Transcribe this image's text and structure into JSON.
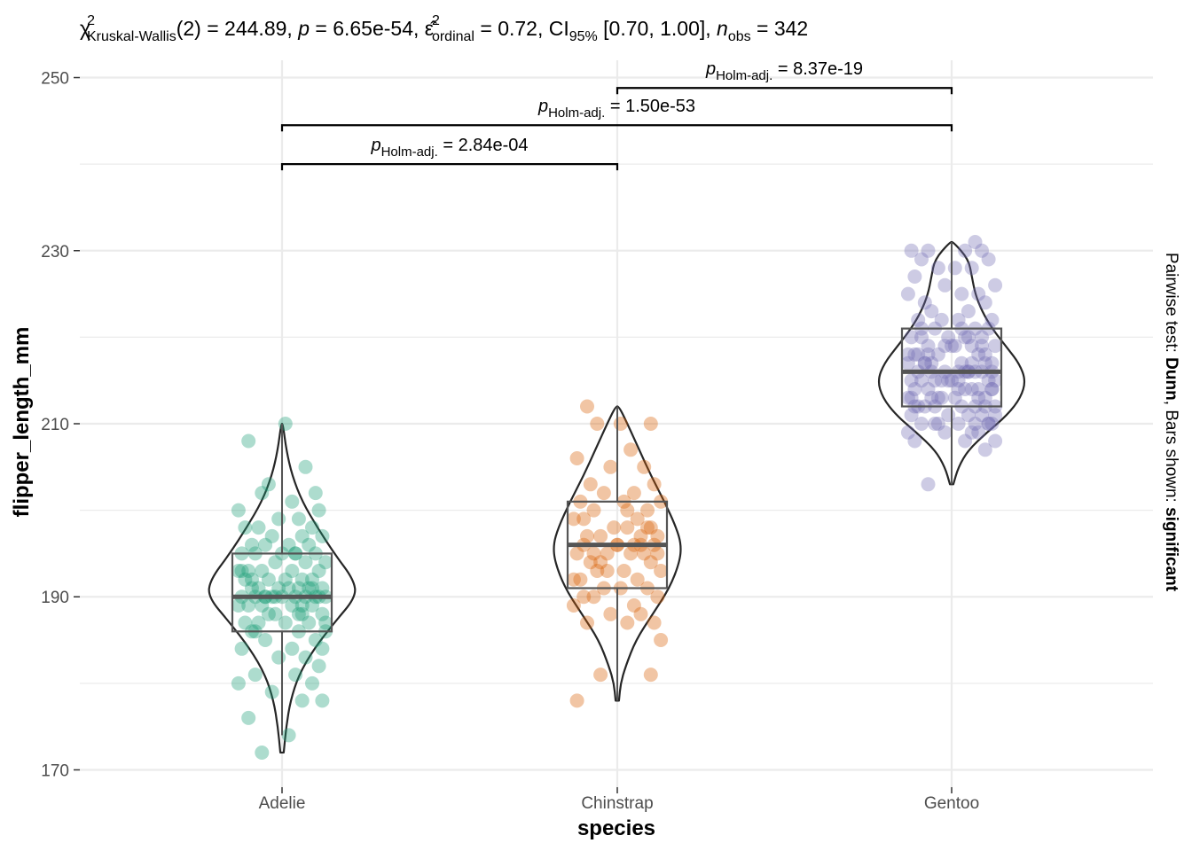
{
  "chart_data": {
    "type": "violin-box-scatter",
    "xlabel": "species",
    "ylabel": "flipper_length_mm",
    "categories": [
      "Adelie",
      "Chinstrap",
      "Gentoo"
    ],
    "colors": [
      "#1b9e77",
      "#d95f02",
      "#7570b3"
    ],
    "ylim": [
      168,
      252
    ],
    "yticks": [
      170,
      190,
      210,
      230,
      250
    ],
    "grid": true,
    "subtitle": {
      "chi": "χ",
      "chi_sup": "2",
      "chi_sub": "Kruskal-Wallis",
      "df": "(2) = 244.89, ",
      "p_sym": "p",
      "p_val": " = 6.65e-54, ",
      "eps": "ε̂",
      "eps_sup": "2",
      "eps_sub": "ordinal",
      "eps_val": " = 0.72, CI",
      "ci_sub": "95%",
      "ci_val": " [0.70, 1.00], ",
      "n_sym": "n",
      "n_sub": "obs",
      "n_val": " = 342"
    },
    "caption": {
      "prefix": "Pairwise test: ",
      "test": "Dunn",
      "mid": ", Bars shown: ",
      "shown": "significant"
    },
    "boxes": [
      {
        "name": "Adelie",
        "q1": 186,
        "median": 190,
        "q3": 195,
        "min": 174,
        "max": 210
      },
      {
        "name": "Chinstrap",
        "q1": 191,
        "median": 196,
        "q3": 201,
        "min": 178,
        "max": 212
      },
      {
        "name": "Gentoo",
        "q1": 212,
        "median": 216,
        "q3": 221,
        "min": 203,
        "max": 231
      }
    ],
    "violins": [
      {
        "name": "Adelie",
        "profile": [
          [
            172,
            0.02
          ],
          [
            175,
            0.05
          ],
          [
            178,
            0.1
          ],
          [
            181,
            0.2
          ],
          [
            184,
            0.38
          ],
          [
            187,
            0.62
          ],
          [
            190,
            0.88
          ],
          [
            192,
            0.85
          ],
          [
            195,
            0.62
          ],
          [
            198,
            0.42
          ],
          [
            201,
            0.24
          ],
          [
            204,
            0.12
          ],
          [
            207,
            0.05
          ],
          [
            210,
            0.01
          ]
        ]
      },
      {
        "name": "Chinstrap",
        "profile": [
          [
            178,
            0.02
          ],
          [
            180,
            0.04
          ],
          [
            182,
            0.1
          ],
          [
            185,
            0.22
          ],
          [
            188,
            0.42
          ],
          [
            191,
            0.62
          ],
          [
            194,
            0.74
          ],
          [
            196,
            0.76
          ],
          [
            198,
            0.7
          ],
          [
            201,
            0.56
          ],
          [
            204,
            0.4
          ],
          [
            207,
            0.26
          ],
          [
            210,
            0.12
          ],
          [
            212,
            0.02
          ]
        ]
      },
      {
        "name": "Gentoo",
        "profile": [
          [
            203,
            0.02
          ],
          [
            205,
            0.08
          ],
          [
            207,
            0.2
          ],
          [
            209,
            0.42
          ],
          [
            211,
            0.66
          ],
          [
            213,
            0.82
          ],
          [
            215,
            0.88
          ],
          [
            217,
            0.8
          ],
          [
            219,
            0.64
          ],
          [
            221,
            0.48
          ],
          [
            223,
            0.36
          ],
          [
            225,
            0.28
          ],
          [
            227,
            0.24
          ],
          [
            229,
            0.2
          ],
          [
            231,
            0.02
          ]
        ]
      }
    ],
    "comparisons": [
      {
        "group1": "Adelie",
        "group2": "Chinstrap",
        "y": 240,
        "p_sym": "p",
        "p_sub": "Holm-adj.",
        "p_val": " = 2.84e-04"
      },
      {
        "group1": "Adelie",
        "group2": "Gentoo",
        "y": 244.5,
        "p_sym": "p",
        "p_sub": "Holm-adj.",
        "p_val": " = 1.50e-53"
      },
      {
        "group1": "Chinstrap",
        "group2": "Gentoo",
        "y": 248.8,
        "p_sym": "p",
        "p_sub": "Holm-adj.",
        "p_val": " = 8.37e-19"
      }
    ],
    "points": [
      {
        "name": "Adelie",
        "dx": [
          -0.06,
          0.02,
          -0.1,
          0.06,
          0.12,
          -0.03,
          0.09,
          -0.13,
          0.04,
          -0.08,
          0.11,
          -0.01,
          0.07,
          -0.12,
          0.03,
          -0.05,
          0.1,
          -0.09,
          0.05,
          0.13,
          -0.07,
          0.01,
          -0.11,
          0.08,
          -0.04,
          0.12,
          -0.02,
          0.06,
          -0.13,
          0.09,
          -0.06,
          0.03,
          -0.1,
          0.11,
          0.0,
          -0.08,
          0.07,
          -0.03,
          0.13,
          -0.12,
          0.04,
          0.1,
          -0.05,
          0.02,
          -0.09,
          0.08,
          -0.01,
          0.12,
          -0.07,
          0.05,
          -0.11,
          0.09,
          -0.04,
          0.06,
          0.01,
          -0.13,
          0.11,
          -0.06,
          0.03,
          -0.1,
          0.07,
          -0.02,
          0.13,
          -0.08,
          0.04,
          -0.12,
          0.1,
          0.0,
          -0.05,
          0.08,
          -0.09,
          0.02,
          0.12,
          -0.03,
          0.06,
          -0.11,
          0.09,
          -0.07,
          0.05,
          -0.01,
          0.11,
          -0.13,
          0.03,
          -0.06,
          0.1,
          -0.04,
          0.07,
          -0.1,
          0.01,
          0.12,
          -0.08,
          0.05,
          -0.02,
          0.09,
          -0.12,
          0.04,
          -0.05,
          0.13,
          -0.09,
          0.06
        ],
        "y": [
          172,
          174,
          176,
          178,
          178,
          179,
          180,
          180,
          181,
          181,
          182,
          183,
          183,
          184,
          184,
          185,
          185,
          186,
          186,
          186,
          187,
          187,
          187,
          187,
          188,
          188,
          188,
          188,
          189,
          189,
          189,
          189,
          189,
          190,
          190,
          190,
          190,
          190,
          190,
          190,
          190,
          190,
          190,
          191,
          191,
          191,
          191,
          191,
          191,
          191,
          192,
          192,
          192,
          192,
          192,
          193,
          193,
          193,
          193,
          193,
          194,
          194,
          194,
          195,
          195,
          195,
          195,
          195,
          196,
          196,
          196,
          196,
          197,
          197,
          197,
          198,
          198,
          198,
          199,
          199,
          200,
          200,
          201,
          202,
          202,
          203,
          205,
          208,
          210,
          184,
          186,
          188,
          190,
          191,
          193,
          195,
          190,
          187,
          192,
          189
        ]
      },
      {
        "name": "Chinstrap",
        "dx": [
          -0.12,
          0.1,
          -0.05,
          0.13,
          -0.09,
          0.03,
          0.11,
          -0.02,
          0.07,
          -0.13,
          0.05,
          -0.07,
          0.12,
          -0.1,
          0.01,
          0.09,
          -0.04,
          0.06,
          -0.11,
          0.13,
          -0.06,
          0.02,
          0.1,
          -0.08,
          0.04,
          -0.12,
          0.08,
          -0.03,
          0.11,
          -0.1,
          0.0,
          0.07,
          -0.05,
          0.12,
          -0.09,
          0.03,
          -0.01,
          0.1,
          -0.13,
          0.06,
          -0.07,
          0.09,
          0.02,
          -0.11,
          0.13,
          -0.04,
          0.05,
          -0.08,
          0.11,
          -0.02,
          0.08,
          -0.12,
          0.04,
          -0.06,
          0.1,
          0.01,
          -0.09,
          0.12,
          -0.03,
          0.07,
          -0.1,
          0.05,
          -0.05,
          0.09,
          -0.13,
          0.03,
          0.0,
          -0.07
        ],
        "y": [
          178,
          181,
          181,
          185,
          187,
          187,
          187,
          188,
          188,
          189,
          189,
          190,
          190,
          190,
          191,
          191,
          191,
          192,
          192,
          193,
          193,
          193,
          194,
          194,
          195,
          195,
          195,
          195,
          196,
          196,
          196,
          196,
          197,
          197,
          197,
          198,
          198,
          198,
          199,
          199,
          200,
          200,
          201,
          201,
          201,
          202,
          202,
          203,
          203,
          205,
          205,
          206,
          207,
          210,
          210,
          210,
          212,
          195,
          193,
          197,
          199,
          196,
          194,
          198,
          192,
          200,
          196,
          195
        ]
      },
      {
        "name": "Gentoo",
        "dx": [
          -0.07,
          0.1,
          -0.11,
          0.04,
          0.13,
          -0.02,
          0.08,
          -0.13,
          0.06,
          -0.05,
          0.11,
          -0.09,
          0.02,
          0.12,
          -0.04,
          0.07,
          -0.12,
          0.09,
          -0.01,
          0.05,
          -0.08,
          0.13,
          -0.1,
          0.03,
          0.1,
          -0.06,
          0.01,
          -0.13,
          0.08,
          -0.03,
          0.12,
          -0.11,
          0.06,
          -0.07,
          0.04,
          0.11,
          -0.09,
          0.0,
          -0.05,
          0.13,
          -0.12,
          0.07,
          0.02,
          -0.1,
          0.09,
          -0.02,
          0.05,
          -0.08,
          0.12,
          -0.06,
          0.03,
          -0.13,
          0.1,
          -0.04,
          0.08,
          -0.11,
          0.01,
          0.06,
          -0.07,
          0.13,
          -0.01,
          0.09,
          -0.12,
          0.04,
          -0.09,
          0.11,
          -0.05,
          0.07,
          -0.03,
          0.02,
          -0.1,
          0.12,
          -0.06,
          0.05,
          -0.08,
          0.1,
          -0.13,
          0.03,
          0.08,
          -0.02,
          0.13,
          -0.11,
          0.06,
          -0.04,
          0.01,
          -0.09,
          0.11,
          -0.07,
          0.04,
          0.09,
          -0.12,
          0.07,
          -0.05,
          0.02,
          0.12,
          -0.1,
          0.05,
          -0.03,
          0.1,
          -0.08,
          0.0,
          0.13,
          -0.06,
          0.08,
          -0.13,
          0.03,
          0.11,
          -0.01,
          0.06,
          -0.11,
          0.09,
          -0.04,
          0.04,
          -0.09,
          0.12,
          -0.07,
          0.02,
          0.1,
          -0.12,
          0.05,
          0.07,
          -0.02,
          0.13
        ],
        "y": [
          203,
          207,
          208,
          208,
          208,
          209,
          209,
          209,
          209,
          210,
          210,
          210,
          210,
          210,
          210,
          210,
          211,
          211,
          211,
          211,
          212,
          212,
          212,
          212,
          212,
          213,
          213,
          213,
          213,
          213,
          214,
          214,
          214,
          214,
          214,
          215,
          215,
          215,
          215,
          215,
          215,
          216,
          216,
          216,
          216,
          216,
          216,
          217,
          217,
          217,
          217,
          217,
          218,
          218,
          218,
          218,
          219,
          219,
          219,
          219,
          220,
          220,
          220,
          220,
          221,
          221,
          221,
          221,
          222,
          222,
          222,
          222,
          223,
          223,
          224,
          224,
          225,
          225,
          225,
          226,
          226,
          227,
          228,
          228,
          228,
          229,
          229,
          230,
          230,
          230,
          230,
          231,
          212,
          214,
          216,
          218,
          220,
          215,
          213,
          217,
          219,
          211,
          216,
          214,
          218,
          221,
          210,
          215,
          217,
          212,
          219,
          213,
          216,
          220,
          214,
          218,
          215,
          217,
          213,
          216,
          212,
          219
        ]
      }
    ]
  }
}
